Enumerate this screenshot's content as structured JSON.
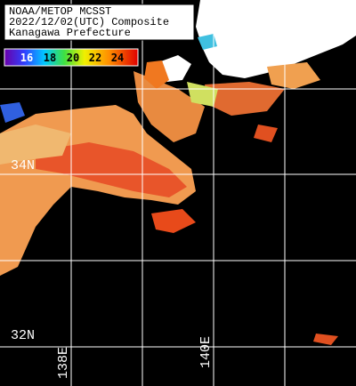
{
  "header": {
    "lines": [
      "NOAA/METOP MCSST",
      "2022/12/02(UTC) Composite",
      "Kanagawa Prefecture"
    ]
  },
  "colorbar": {
    "labels": [
      "16",
      "18",
      "20",
      "22",
      "24"
    ]
  },
  "grid": {
    "lat_labels": [
      "34N",
      "32N"
    ],
    "lon_labels": [
      "138E",
      "140E"
    ]
  }
}
